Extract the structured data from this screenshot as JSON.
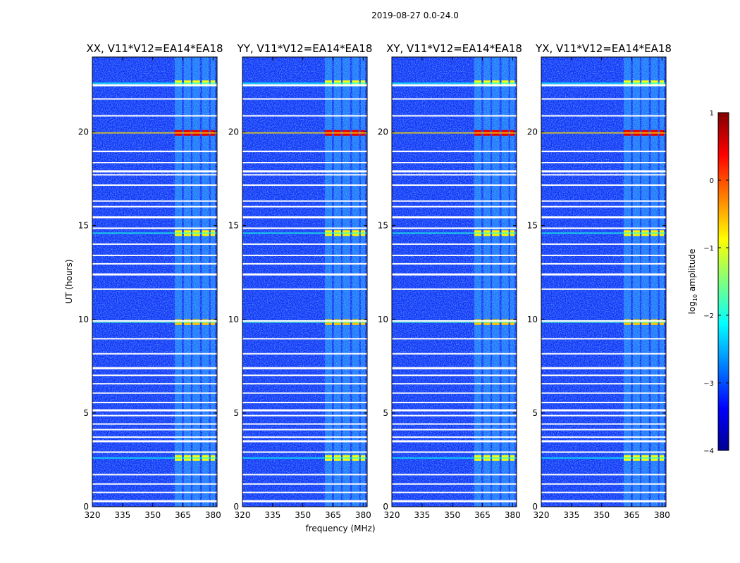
{
  "chart_data": {
    "type": "heatmap",
    "suptitle": "2019-08-27 0.0-24.0",
    "xlabel": "frequency (MHz)",
    "ylabel": "UT (hours)",
    "xlim": [
      320,
      382
    ],
    "ylim": [
      0,
      24
    ],
    "xticks": [
      "320",
      "335",
      "350",
      "365",
      "380"
    ],
    "yticks": [
      "0",
      "5",
      "10",
      "15",
      "20"
    ],
    "panels": [
      {
        "title": "XX, V11*V12=EA14*EA18",
        "polarization": "XX"
      },
      {
        "title": "YY, V11*V12=EA14*EA18",
        "polarization": "YY"
      },
      {
        "title": "XY, V11*V12=EA14*EA18",
        "polarization": "XY"
      },
      {
        "title": "YX, V11*V12=EA14*EA18",
        "polarization": "YX"
      }
    ],
    "rfi_bands_mhz": [
      [
        361,
        364.5
      ],
      [
        365.5,
        369
      ],
      [
        369.8,
        373.5
      ],
      [
        374.5,
        378
      ],
      [
        378.8,
        381
      ]
    ],
    "flagged_hours": [
      0.35,
      0.8,
      1.25,
      1.75,
      2.95,
      3.55,
      3.75,
      4.15,
      4.45,
      4.9,
      5.2,
      5.6,
      6.1,
      6.6,
      7.05,
      7.45,
      8.2,
      9.0,
      9.95,
      11.65,
      12.45,
      13.0,
      13.45,
      14.05,
      14.9,
      15.5,
      16.05,
      16.35,
      17.2,
      17.75,
      17.95,
      18.4,
      19.0,
      20.9,
      21.8,
      22.55
    ],
    "bright_events": [
      {
        "hour": 2.6,
        "log_amp": -0.9
      },
      {
        "hour": 9.85,
        "log_amp": -0.6
      },
      {
        "hour": 14.6,
        "log_amp": -0.8
      },
      {
        "hour": 19.95,
        "log_amp": 0.5
      },
      {
        "hour": 22.6,
        "log_amp": -0.9
      }
    ],
    "colorbar": {
      "label": "log10 amplitude",
      "label_base": "log",
      "label_sub": "10",
      "label_rest": " amplitude",
      "range": [
        -4,
        1
      ],
      "ticks": [
        "1",
        "0",
        "−1",
        "−2",
        "−3",
        "−4"
      ],
      "colormap": "jet"
    }
  }
}
